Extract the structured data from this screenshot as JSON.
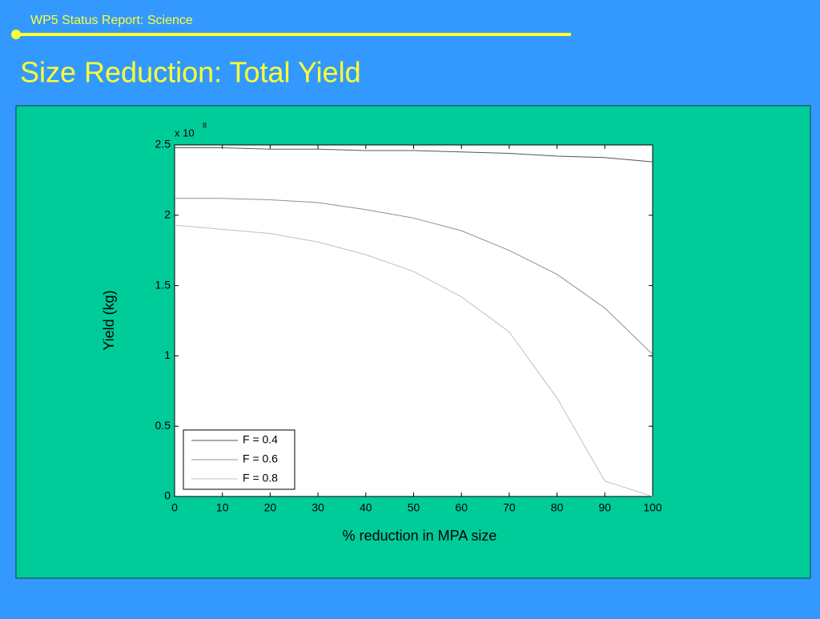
{
  "header": "WP5 Status Report: Science",
  "title": "Size Reduction: Total Yield",
  "chart_data": {
    "type": "line",
    "x_label": "% reduction in MPA size",
    "y_label": "Yield (kg)",
    "y_multiplier": {
      "base": "x 10",
      "exponent": "8"
    },
    "x": [
      0,
      10,
      20,
      30,
      40,
      50,
      60,
      70,
      80,
      90,
      100
    ],
    "series": [
      {
        "name": "F = 0.4",
        "color": "#555555",
        "values": [
          2.48,
          2.48,
          2.47,
          2.47,
          2.46,
          2.46,
          2.45,
          2.44,
          2.42,
          2.41,
          2.38
        ]
      },
      {
        "name": "F = 0.6",
        "color": "#909090",
        "values": [
          2.12,
          2.12,
          2.11,
          2.09,
          2.04,
          1.98,
          1.89,
          1.75,
          1.58,
          1.34,
          1.01
        ]
      },
      {
        "name": "F = 0.8",
        "color": "#c0c0c0",
        "values": [
          1.93,
          1.9,
          1.87,
          1.81,
          1.72,
          1.6,
          1.42,
          1.17,
          0.7,
          0.11,
          0
        ]
      }
    ],
    "xlim": [
      0,
      100
    ],
    "ylim": [
      0,
      2.5
    ],
    "xticks": [
      0,
      10,
      20,
      30,
      40,
      50,
      60,
      70,
      80,
      90,
      100
    ],
    "yticks": [
      0,
      0.5,
      1,
      1.5,
      2,
      2.5
    ],
    "legend": "lower-left"
  }
}
